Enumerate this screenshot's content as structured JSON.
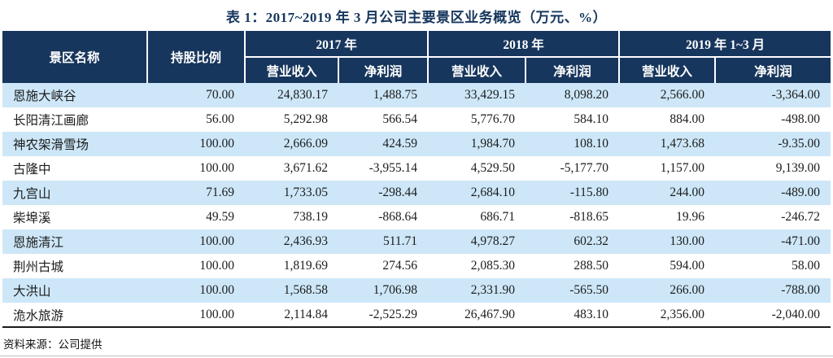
{
  "title": "表 1：2017~2019 年 3 月公司主要景区业务概览（万元、%）",
  "source_note": "资料来源：公司提供",
  "colors": {
    "header_bg": "#17365D",
    "stripe_bg": "#CDE7F8",
    "title_color": "#17375E",
    "table_bottom_border": "#1a1a1a",
    "page_divider": "#bdbdbd"
  },
  "table": {
    "headers": {
      "name": "景区名称",
      "ratio": "持股比例",
      "groups": [
        {
          "label": "2017 年",
          "sub": [
            "营业收入",
            "净利润"
          ]
        },
        {
          "label": "2018 年",
          "sub": [
            "营业收入",
            "净利润"
          ]
        },
        {
          "label": "2019 年 1~3 月",
          "sub": [
            "营业收入",
            "净利润"
          ]
        }
      ]
    },
    "rows": [
      {
        "name": "恩施大峡谷",
        "ratio": "70.00",
        "values": [
          "24,830.17",
          "1,488.75",
          "33,429.15",
          "8,098.20",
          "2,566.00",
          "-3,364.00"
        ]
      },
      {
        "name": "长阳清江画廊",
        "ratio": "56.00",
        "values": [
          "5,292.98",
          "566.54",
          "5,776.70",
          "584.10",
          "884.00",
          "-498.00"
        ]
      },
      {
        "name": "神农架滑雪场",
        "ratio": "100.00",
        "values": [
          "2,666.09",
          "424.59",
          "1,984.70",
          "108.10",
          "1,473.68",
          "-9.35.00"
        ]
      },
      {
        "name": "古隆中",
        "ratio": "100.00",
        "values": [
          "3,671.62",
          "-3,955.14",
          "4,529.50",
          "-5,177.70",
          "1,157.00",
          "9,139.00"
        ]
      },
      {
        "name": "九宫山",
        "ratio": "71.69",
        "values": [
          "1,733.05",
          "-298.44",
          "2,684.10",
          "-115.80",
          "244.00",
          "-489.00"
        ]
      },
      {
        "name": "柴埠溪",
        "ratio": "49.59",
        "values": [
          "738.19",
          "-868.64",
          "686.71",
          "-818.65",
          "19.96",
          "-246.72"
        ]
      },
      {
        "name": "恩施清江",
        "ratio": "100.00",
        "values": [
          "2,436.93",
          "511.71",
          "4,978.27",
          "602.32",
          "130.00",
          "-471.00"
        ]
      },
      {
        "name": "荆州古城",
        "ratio": "100.00",
        "values": [
          "1,819.69",
          "274.56",
          "2,085.30",
          "288.50",
          "594.00",
          "58.00"
        ]
      },
      {
        "name": "大洪山",
        "ratio": "100.00",
        "values": [
          "1,568.58",
          "1,706.98",
          "2,331.90",
          "-565.50",
          "266.00",
          "-788.00"
        ]
      },
      {
        "name": "洈水旅游",
        "ratio": "100.00",
        "values": [
          "2,114.84",
          "-2,525.29",
          "26,467.90",
          "483.10",
          "2,356.00",
          "-2,040.00"
        ]
      }
    ]
  }
}
